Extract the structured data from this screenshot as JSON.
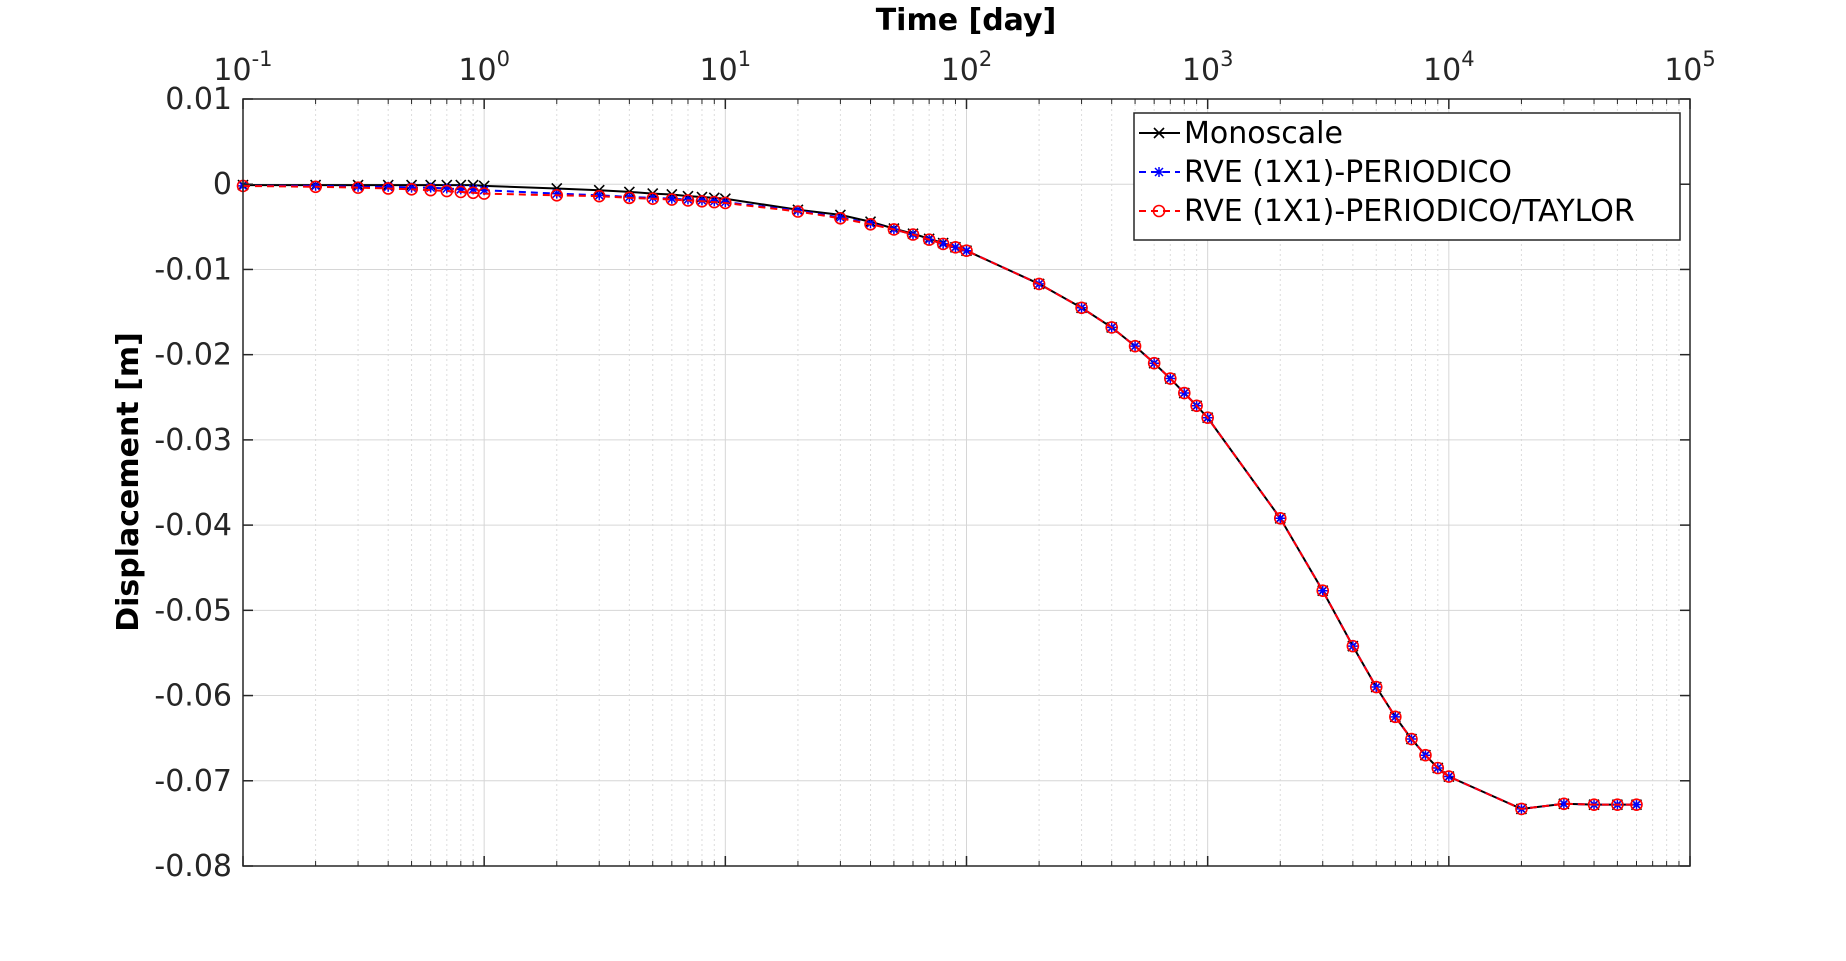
{
  "chart_data": {
    "type": "line",
    "xlabel": "Time [day]",
    "ylabel": "Displacement [m]",
    "xscale": "log",
    "xaxis_location": "top",
    "xlim": [
      0.1,
      100000
    ],
    "ylim": [
      -0.08,
      0.01
    ],
    "x_ticks": [
      {
        "value": 0.1,
        "base": "10",
        "exp": "-1"
      },
      {
        "value": 1,
        "base": "10",
        "exp": "0"
      },
      {
        "value": 10,
        "base": "10",
        "exp": "1"
      },
      {
        "value": 100,
        "base": "10",
        "exp": "2"
      },
      {
        "value": 1000,
        "base": "10",
        "exp": "3"
      },
      {
        "value": 10000,
        "base": "10",
        "exp": "4"
      },
      {
        "value": 100000,
        "base": "10",
        "exp": "5"
      }
    ],
    "y_ticks": [
      {
        "value": 0.01,
        "label": "0.01"
      },
      {
        "value": 0,
        "label": "0"
      },
      {
        "value": -0.01,
        "label": "-0.01"
      },
      {
        "value": -0.02,
        "label": "-0.02"
      },
      {
        "value": -0.03,
        "label": "-0.03"
      },
      {
        "value": -0.04,
        "label": "-0.04"
      },
      {
        "value": -0.05,
        "label": "-0.05"
      },
      {
        "value": -0.06,
        "label": "-0.06"
      },
      {
        "value": -0.07,
        "label": "-0.07"
      },
      {
        "value": -0.08,
        "label": "-0.08"
      }
    ],
    "grid": true,
    "minor_grid": true,
    "legend_position": "top-right",
    "series": [
      {
        "name": "Monoscale",
        "color": "#000000",
        "line_style": "solid",
        "marker": "x",
        "x": [
          0.1,
          0.2,
          0.3,
          0.4,
          0.5,
          0.6,
          0.7,
          0.8,
          0.9,
          1,
          2,
          3,
          4,
          5,
          6,
          7,
          8,
          9,
          10,
          20,
          30,
          40,
          50,
          60,
          70,
          80,
          90,
          100,
          200,
          300,
          400,
          500,
          600,
          700,
          800,
          900,
          1000,
          2000,
          3000,
          4000,
          5000,
          6000,
          7000,
          8000,
          9000,
          10000,
          20000,
          30000,
          40000,
          50000,
          60000
        ],
        "y": [
          -0.0001,
          -0.0001,
          -0.0001,
          -0.0001,
          -0.0001,
          -0.0001,
          -0.0001,
          -0.0001,
          -0.0001,
          -0.0002,
          -0.0005,
          -0.0007,
          -0.0009,
          -0.0011,
          -0.0012,
          -0.0014,
          -0.0015,
          -0.0016,
          -0.0017,
          -0.003,
          -0.0036,
          -0.0044,
          -0.0052,
          -0.0058,
          -0.0064,
          -0.0069,
          -0.0074,
          -0.0078,
          -0.0117,
          -0.0145,
          -0.0168,
          -0.019,
          -0.021,
          -0.0228,
          -0.0245,
          -0.026,
          -0.0274,
          -0.0392,
          -0.0477,
          -0.0542,
          -0.059,
          -0.0625,
          -0.0651,
          -0.067,
          -0.0685,
          -0.0695,
          -0.0733,
          -0.0727,
          -0.0728,
          -0.0728,
          -0.0728
        ]
      },
      {
        "name": "RVE (1X1)-PERIODICO",
        "color": "#0000ff",
        "line_style": "dashed",
        "marker": "*",
        "x": [
          0.1,
          0.2,
          0.3,
          0.4,
          0.5,
          0.6,
          0.7,
          0.8,
          0.9,
          1,
          2,
          3,
          4,
          5,
          6,
          7,
          8,
          9,
          10,
          20,
          30,
          40,
          50,
          60,
          70,
          80,
          90,
          100,
          200,
          300,
          400,
          500,
          600,
          700,
          800,
          900,
          1000,
          2000,
          3000,
          4000,
          5000,
          6000,
          7000,
          8000,
          9000,
          10000,
          20000,
          30000,
          40000,
          50000,
          60000
        ],
        "y": [
          -0.0002,
          -0.0002,
          -0.0003,
          -0.0003,
          -0.0004,
          -0.0004,
          -0.0005,
          -0.0006,
          -0.0006,
          -0.0007,
          -0.0011,
          -0.0013,
          -0.0015,
          -0.0016,
          -0.0017,
          -0.0018,
          -0.0019,
          -0.002,
          -0.0021,
          -0.0031,
          -0.0039,
          -0.0046,
          -0.0053,
          -0.0059,
          -0.0065,
          -0.007,
          -0.0074,
          -0.0078,
          -0.0117,
          -0.0145,
          -0.0168,
          -0.019,
          -0.021,
          -0.0228,
          -0.0245,
          -0.026,
          -0.0274,
          -0.0392,
          -0.0477,
          -0.0542,
          -0.059,
          -0.0625,
          -0.0651,
          -0.067,
          -0.0685,
          -0.0695,
          -0.0733,
          -0.0727,
          -0.0728,
          -0.0728,
          -0.0728
        ]
      },
      {
        "name": "RVE (1X1)-PERIODICO/TAYLOR",
        "color": "#ff0000",
        "line_style": "dashed",
        "marker": "o",
        "x": [
          0.1,
          0.2,
          0.3,
          0.4,
          0.5,
          0.6,
          0.7,
          0.8,
          0.9,
          1,
          2,
          3,
          4,
          5,
          6,
          7,
          8,
          9,
          10,
          20,
          30,
          40,
          50,
          60,
          70,
          80,
          90,
          100,
          200,
          300,
          400,
          500,
          600,
          700,
          800,
          900,
          1000,
          2000,
          3000,
          4000,
          5000,
          6000,
          7000,
          8000,
          9000,
          10000,
          20000,
          30000,
          40000,
          50000,
          60000
        ],
        "y": [
          -0.0002,
          -0.0003,
          -0.0004,
          -0.0005,
          -0.0006,
          -0.0007,
          -0.0008,
          -0.0009,
          -0.001,
          -0.0011,
          -0.0013,
          -0.0014,
          -0.0016,
          -0.0017,
          -0.0018,
          -0.0019,
          -0.002,
          -0.0021,
          -0.0022,
          -0.0032,
          -0.004,
          -0.0047,
          -0.0053,
          -0.0059,
          -0.0065,
          -0.007,
          -0.0074,
          -0.0078,
          -0.0117,
          -0.0145,
          -0.0168,
          -0.019,
          -0.021,
          -0.0228,
          -0.0245,
          -0.026,
          -0.0274,
          -0.0392,
          -0.0477,
          -0.0542,
          -0.059,
          -0.0625,
          -0.0651,
          -0.067,
          -0.0685,
          -0.0695,
          -0.0733,
          -0.0727,
          -0.0728,
          -0.0728,
          -0.0728
        ]
      }
    ]
  }
}
